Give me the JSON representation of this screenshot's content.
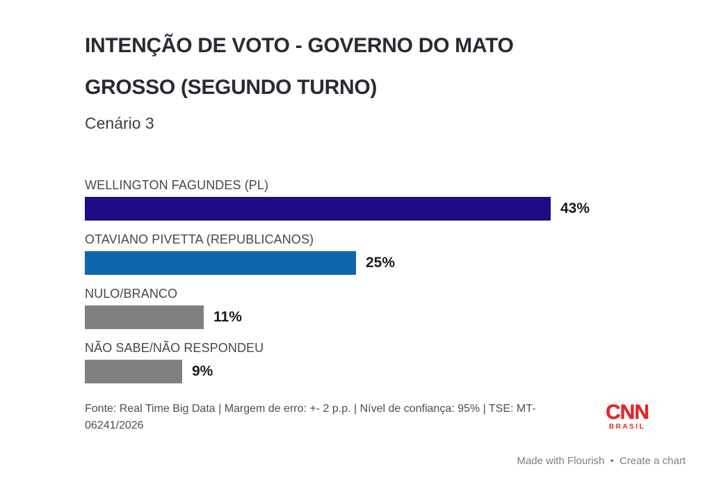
{
  "header": {
    "title_line1": "INTENÇÃO DE VOTO - GOVERNO DO MATO",
    "title_line2": "GROSSO (SEGUNDO TURNO)",
    "subtitle": "Cenário 3"
  },
  "chart_data": {
    "type": "bar",
    "orientation": "horizontal",
    "title": "INTENÇÃO DE VOTO - GOVERNO DO MATO GROSSO (SEGUNDO TURNO)",
    "subtitle": "Cenário 3",
    "categories": [
      "WELLINGTON FAGUNDES (PL)",
      "OTAVIANO PIVETTA (REPUBLICANOS)",
      "NULO/BRANCO",
      "NÃO SABE/NÃO RESPONDEU"
    ],
    "values": [
      43,
      25,
      11,
      9
    ],
    "display_values": [
      "43%",
      "25%",
      "11%",
      "9%"
    ],
    "value_suffix": "%",
    "bar_colors": [
      "#1f0c85",
      "#1066ad",
      "#808080",
      "#808080"
    ],
    "xlim": [
      0,
      45
    ],
    "grid": false,
    "legend": "none",
    "data_labels": "outside-end",
    "source": "Fonte: Real Time Big Data | Margem de erro: +- 2 p.p. | Nível de confiança: 95% | TSE: MT-06241/2026"
  },
  "footer": {
    "source_line1": "Fonte: Real Time Big Data | Margem de erro: +- 2 p.p. | Nível de confiança: 95% | TSE: MT-",
    "source_line2": "06241/2026",
    "brand": {
      "name": "CNN",
      "sub": "BRASIL",
      "color": "#e1262c"
    },
    "attribution": {
      "made_with": "Made with Flourish",
      "separator": "•",
      "create_chart": "Create a chart"
    }
  }
}
